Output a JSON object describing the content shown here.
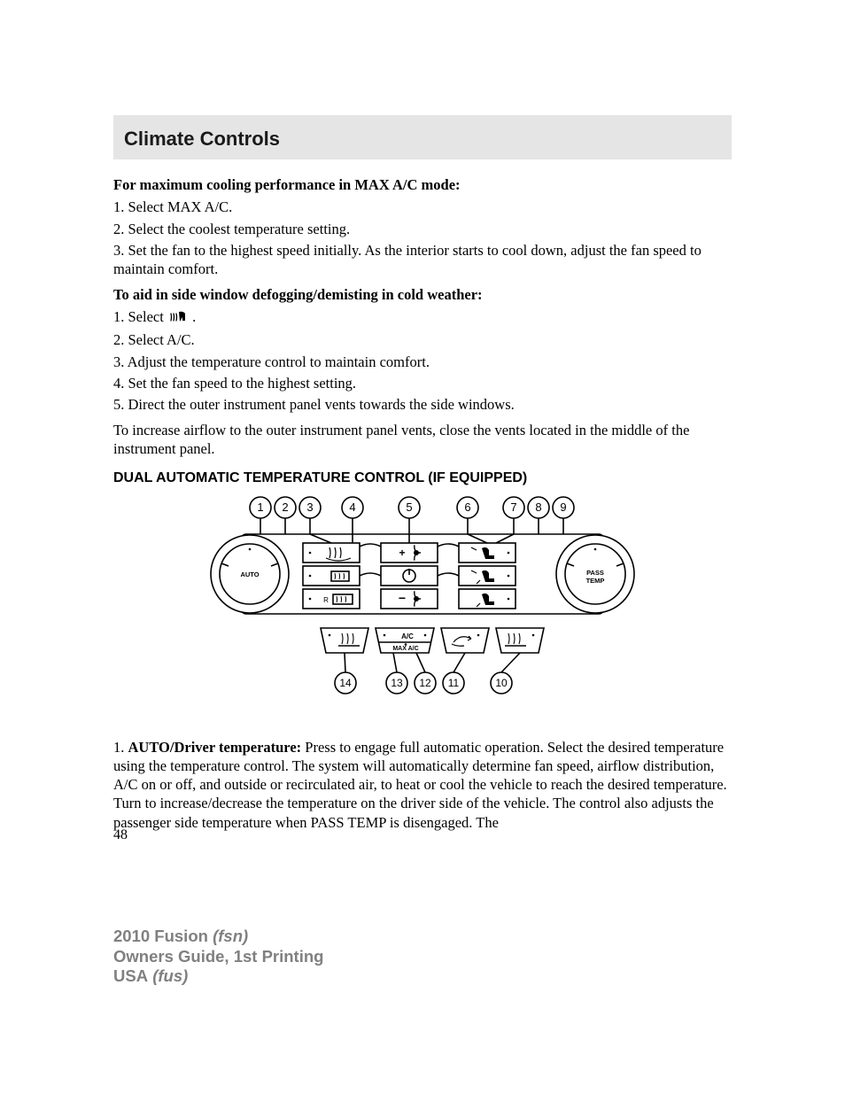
{
  "header": {
    "title": "Climate Controls"
  },
  "sec1": {
    "heading": "For maximum cooling performance in MAX A/C mode:",
    "items": [
      "1. Select MAX A/C.",
      "2. Select the coolest temperature setting.",
      "3. Set the fan to the highest speed initially. As the interior starts to cool down, adjust the fan speed to maintain comfort."
    ]
  },
  "sec2": {
    "heading": "To aid in side window defogging/demisting in cold weather:",
    "step1_pre": "1. Select ",
    "step1_post": " .",
    "items": [
      "2. Select A/C.",
      "3. Adjust the temperature control to maintain comfort.",
      "4. Set the fan speed to the highest setting.",
      "5. Direct the outer instrument panel vents towards the side windows."
    ],
    "tail": "To increase airflow to the outer instrument panel vents, close the vents located in the middle of the instrument panel."
  },
  "subheading": "DUAL AUTOMATIC TEMPERATURE CONTROL (IF EQUIPPED)",
  "diagram": {
    "top_callouts": [
      "1",
      "2",
      "3",
      "4",
      "5",
      "6",
      "7",
      "8",
      "9"
    ],
    "bottom_callouts": [
      "14",
      "13",
      "12",
      "11",
      "10"
    ],
    "knob_left": "AUTO",
    "knob_right_l1": "PASS",
    "knob_right_l2": "TEMP",
    "center_plus": "+",
    "center_minus": "−",
    "btn_r_label": "R",
    "btn_ac": "A/C",
    "btn_maxac": "MAX A/C",
    "colors": {
      "stroke": "#000000",
      "fill": "#ffffff"
    },
    "line_width": 1.6
  },
  "desc": {
    "num": "1. ",
    "label": "AUTO/Driver temperature:",
    "body": " Press to engage full automatic operation. Select the desired temperature using the temperature control. The system will automatically determine fan speed, airflow distribution, A/C on or off, and outside or recirculated air, to heat or cool the vehicle to reach the desired temperature. Turn to increase/decrease the temperature on the driver side of the vehicle. The control also adjusts the passenger side temperature when PASS TEMP is disengaged. The"
  },
  "page_number": "48",
  "footer": {
    "l1a": "2010 Fusion",
    "l1b": " (fsn)",
    "l2": "Owners Guide, 1st Printing",
    "l3a": "USA",
    "l3b": " (fus)"
  }
}
